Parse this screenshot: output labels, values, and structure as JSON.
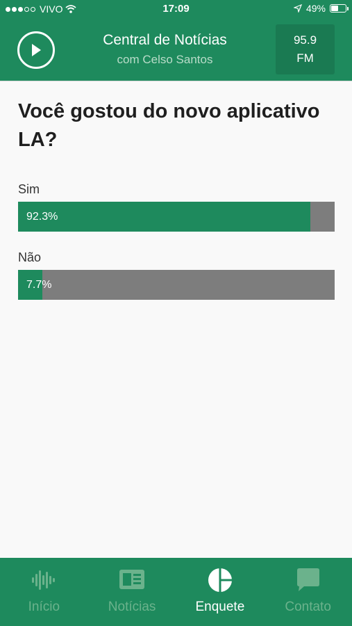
{
  "status_bar": {
    "carrier": "VIVO",
    "time": "17:09",
    "battery": "49%",
    "battery_level": 0.49,
    "signal_bars_filled": 3,
    "signal_bars_total": 5
  },
  "header": {
    "title": "Central de Notícias",
    "subtitle": "com Celso Santos",
    "frequency": "95.9",
    "band": "FM"
  },
  "poll": {
    "question": "Você gostou do novo aplicativo LA?",
    "options": [
      {
        "label": "Sim",
        "percent_text": "92.3%",
        "percent": 92.3
      },
      {
        "label": "Não",
        "percent_text": "7.7%",
        "percent": 7.7
      }
    ]
  },
  "tabs": [
    {
      "label": "Início",
      "icon": "waveform-icon",
      "active": false
    },
    {
      "label": "Notícias",
      "icon": "newspaper-icon",
      "active": false
    },
    {
      "label": "Enquete",
      "icon": "pie-chart-icon",
      "active": true
    },
    {
      "label": "Contato",
      "icon": "chat-bubble-icon",
      "active": false
    }
  ],
  "colors": {
    "brand_green": "#1e8a5d",
    "bar_remainder": "#7d7d7d",
    "inactive_tab": "#6bb28c"
  }
}
